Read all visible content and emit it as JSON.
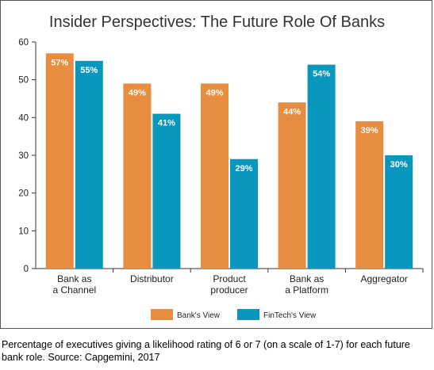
{
  "chart_data": {
    "type": "bar",
    "title": "Insider Perspectives: The Future Role Of Banks",
    "categories": [
      [
        "Bank as",
        "a Channel"
      ],
      [
        "Distributor"
      ],
      [
        "Product",
        "producer"
      ],
      [
        "Bank as",
        "a Platform"
      ],
      [
        "Aggregator"
      ]
    ],
    "series": [
      {
        "name": "Bank's View",
        "color": "#e68d3f",
        "values": [
          57,
          49,
          49,
          44,
          39
        ],
        "labels": [
          "57%",
          "49%",
          "49%",
          "44%",
          "39%"
        ]
      },
      {
        "name": "FinTech's View",
        "color": "#0a97bd",
        "values": [
          55,
          41,
          29,
          54,
          30
        ],
        "labels": [
          "55%",
          "41%",
          "29%",
          "54%",
          "30%"
        ]
      }
    ],
    "ylim": [
      0,
      60
    ],
    "yticks": [
      0,
      10,
      20,
      30,
      40,
      50,
      60
    ],
    "grid": false,
    "legend": "bottom-center"
  },
  "caption": "Percentage of executives giving a likelihood rating of 6 or 7 (on a scale of 1-7) for each future bank role. Source: Capgemini, 2017"
}
